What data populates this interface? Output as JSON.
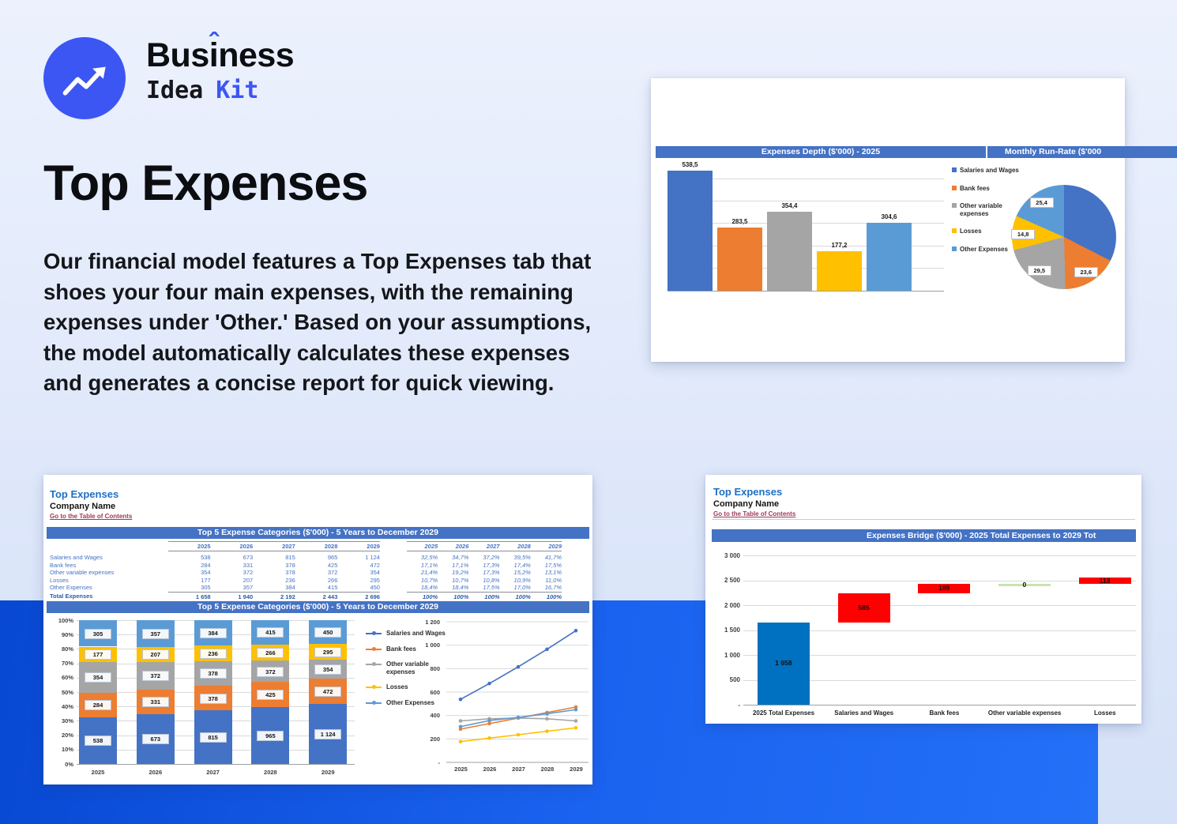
{
  "page": {
    "accent_blue": "#3C56F3",
    "band_blue": "#1A63F0",
    "excel_header_blue": "#4472C4",
    "excel_palette": [
      "#4472C4",
      "#ED7D31",
      "#A5A5A5",
      "#FFC000",
      "#5B9BD5"
    ],
    "bridge_colors": {
      "total": "#0070C0",
      "increase": "#FF0000",
      "zero": "#C9E3B0"
    }
  },
  "logo": {
    "bus": "Bus",
    "i": "i",
    "hat": "ˆ",
    "ness": "ness",
    "idea": "Idea",
    "kit": "Kit"
  },
  "hero": {
    "title": "Top Expenses",
    "body": "Our financial model features a Top Expenses tab that shoes your four main expenses, with the remaining expenses under 'Other.' Based on your assumptions, the model automatically calculates these expenses and generates a concise report for quick viewing."
  },
  "sheets": {
    "left": {
      "title": "Top Expenses",
      "company": "Company Name",
      "link": "Go to the Table of Contents"
    },
    "right": {
      "title": "Top Expenses",
      "company": "Company Name",
      "link": "Go to the Table of Contents"
    }
  },
  "chart_data": [
    {
      "id": "expenses-depth",
      "type": "bar",
      "title": "Expenses Depth ($'000) - 2025",
      "categories": [
        "Salaries and Wages",
        "Bank fees",
        "Other variable expenses",
        "Losses",
        "Other Expenses"
      ],
      "values": [
        538.5,
        283.5,
        354.4,
        177.2,
        304.6
      ],
      "value_labels": [
        "538,5",
        "283,5",
        "354,4",
        "177,2",
        "304,6"
      ],
      "colors": [
        "#4472C4",
        "#ED7D31",
        "#A5A5A5",
        "#FFC000",
        "#5B9BD5"
      ],
      "ylim": [
        0,
        550
      ],
      "grid_step": 100,
      "legend": [
        "Salaries and Wages",
        "Bank fees",
        "Other variable expenses",
        "Losses",
        "Other Expenses"
      ],
      "legend_position": "right"
    },
    {
      "id": "monthly-run-rate",
      "type": "pie",
      "title": "Monthly Run-Rate ($'000",
      "slices": [
        {
          "name": "Salaries and Wages",
          "value": 44.9,
          "label": "",
          "color": "#4472C4"
        },
        {
          "name": "Bank fees",
          "value": 23.6,
          "label": "23,6",
          "color": "#ED7D31"
        },
        {
          "name": "Other variable expenses",
          "value": 29.5,
          "label": "29,5",
          "color": "#A5A5A5"
        },
        {
          "name": "Losses",
          "value": 14.8,
          "label": "14,8",
          "color": "#FFC000"
        },
        {
          "name": "Other Expenses",
          "value": 25.4,
          "label": "25,4",
          "color": "#5B9BD5"
        }
      ]
    },
    {
      "id": "top5-table",
      "type": "table",
      "title": "Top 5 Expense Categories ($'000) - 5 Years to December 2029",
      "years": [
        "2025",
        "2026",
        "2027",
        "2028",
        "2029"
      ],
      "rows": [
        {
          "label": "Salaries and Wages",
          "values": [
            "538",
            "673",
            "815",
            "965",
            "1 124"
          ],
          "pcts": [
            "32,5%",
            "34,7%",
            "37,2%",
            "39,5%",
            "41,7%"
          ]
        },
        {
          "label": "Bank fees",
          "values": [
            "284",
            "331",
            "378",
            "425",
            "472"
          ],
          "pcts": [
            "17,1%",
            "17,1%",
            "17,3%",
            "17,4%",
            "17,5%"
          ]
        },
        {
          "label": "Other variable expenses",
          "values": [
            "354",
            "372",
            "378",
            "372",
            "354"
          ],
          "pcts": [
            "21,4%",
            "19,2%",
            "17,3%",
            "15,2%",
            "13,1%"
          ]
        },
        {
          "label": "Losses",
          "values": [
            "177",
            "207",
            "236",
            "266",
            "295"
          ],
          "pcts": [
            "10,7%",
            "10,7%",
            "10,8%",
            "10,9%",
            "11,0%"
          ]
        },
        {
          "label": "Other Expenses",
          "values": [
            "305",
            "357",
            "384",
            "415",
            "450"
          ],
          "pcts": [
            "18,4%",
            "18,4%",
            "17,5%",
            "17,0%",
            "16,7%"
          ]
        }
      ],
      "total": {
        "label": "Total Expenses",
        "values": [
          "1 658",
          "1 940",
          "2 192",
          "2 443",
          "2 696"
        ],
        "pcts": [
          "100%",
          "100%",
          "100%",
          "100%",
          "100%"
        ]
      }
    },
    {
      "id": "top5-stacked",
      "type": "stacked-bar",
      "title": "Top 5 Expense Categories ($'000) - 5 Years to December 2029",
      "categories": [
        "2025",
        "2026",
        "2027",
        "2028",
        "2029"
      ],
      "series": [
        {
          "name": "Salaries and Wages",
          "color": "#4472C4",
          "values": [
            538,
            673,
            815,
            965,
            1124
          ],
          "labels": [
            "538",
            "673",
            "815",
            "965",
            "1 124"
          ]
        },
        {
          "name": "Bank fees",
          "color": "#ED7D31",
          "values": [
            284,
            331,
            378,
            425,
            472
          ],
          "labels": [
            "284",
            "331",
            "378",
            "425",
            "472"
          ]
        },
        {
          "name": "Other variable expenses",
          "color": "#A5A5A5",
          "values": [
            354,
            372,
            378,
            372,
            354
          ],
          "labels": [
            "354",
            "372",
            "378",
            "372",
            "354"
          ]
        },
        {
          "name": "Losses",
          "color": "#FFC000",
          "values": [
            177,
            207,
            236,
            266,
            295
          ],
          "labels": [
            "177",
            "207",
            "236",
            "266",
            "295"
          ]
        },
        {
          "name": "Other Expenses",
          "color": "#5B9BD5",
          "values": [
            305,
            357,
            384,
            415,
            450
          ],
          "labels": [
            "305",
            "357",
            "384",
            "415",
            "450"
          ]
        }
      ],
      "y_ticks": [
        "100%",
        "90%",
        "80%",
        "70%",
        "60%",
        "50%",
        "40%",
        "30%",
        "20%",
        "10%",
        "0%"
      ]
    },
    {
      "id": "top5-lines",
      "type": "line",
      "x": [
        "2025",
        "2026",
        "2027",
        "2028",
        "2029"
      ],
      "series": [
        {
          "name": "Salaries and Wages",
          "color": "#4472C4",
          "values": [
            538,
            673,
            815,
            965,
            1124
          ]
        },
        {
          "name": "Bank fees",
          "color": "#ED7D31",
          "values": [
            284,
            331,
            378,
            425,
            472
          ]
        },
        {
          "name": "Other variable expenses",
          "color": "#A5A5A5",
          "values": [
            354,
            372,
            378,
            372,
            354
          ]
        },
        {
          "name": "Losses",
          "color": "#FFC000",
          "values": [
            177,
            207,
            236,
            266,
            295
          ]
        },
        {
          "name": "Other Expenses",
          "color": "#5B9BD5",
          "values": [
            305,
            357,
            384,
            415,
            450
          ]
        }
      ],
      "ylim": [
        0,
        1200
      ],
      "y_ticks": [
        "1 200",
        "1 000",
        "800",
        "600",
        "400",
        "200",
        "-"
      ],
      "legend": [
        "Salaries and Wages",
        "Bank fees",
        "Other variable expenses",
        "Losses",
        "Other Expenses"
      ],
      "legend_position": "left"
    },
    {
      "id": "expenses-bridge",
      "type": "waterfall",
      "title": "Expenses Bridge ($'000) - 2025 Total Expenses to 2029 Tot",
      "categories": [
        "2025 Total Expenses",
        "Salaries and Wages",
        "Bank fees",
        "Other variable expenses",
        "Losses"
      ],
      "bars": [
        {
          "start": 0,
          "end": 1658,
          "label": "1 658",
          "color": "#0070C0"
        },
        {
          "start": 1658,
          "end": 2243,
          "label": "585",
          "color": "#FF0000"
        },
        {
          "start": 2243,
          "end": 2432,
          "label": "189",
          "color": "#FF0000"
        },
        {
          "start": 2432,
          "end": 2432,
          "label": "0",
          "color": "#C9E3B0"
        },
        {
          "start": 2432,
          "end": 2550,
          "label": "118",
          "color": "#FF0000"
        }
      ],
      "ylim": [
        0,
        3000
      ],
      "y_ticks": [
        "3 000",
        "2 500",
        "2 000",
        "1 500",
        "1 000",
        "500",
        "-"
      ]
    }
  ]
}
